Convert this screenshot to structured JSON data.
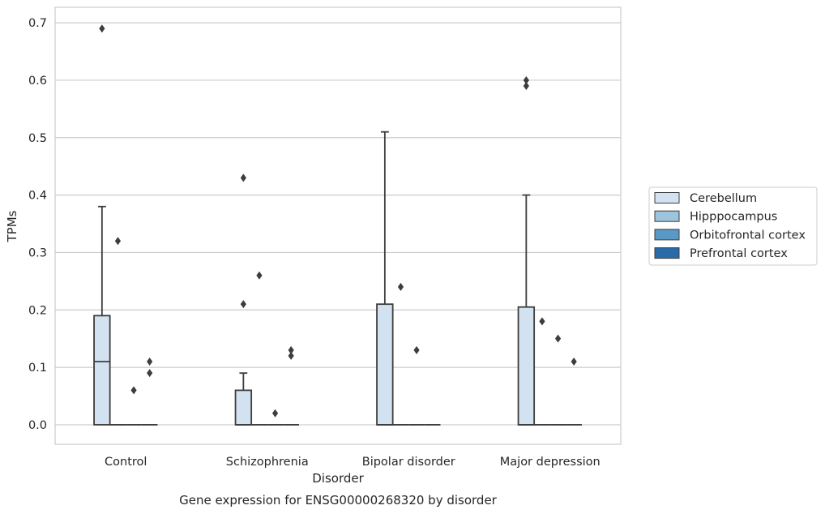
{
  "chart_data": {
    "type": "box",
    "title": "",
    "caption": "Gene expression for ENSG00000268320 by disorder",
    "xlabel": "Disorder",
    "ylabel": "TPMs",
    "ylim": [
      -0.034,
      0.727
    ],
    "yticks": [
      "0.0",
      "0.1",
      "0.2",
      "0.3",
      "0.4",
      "0.5",
      "0.6",
      "0.7"
    ],
    "ytick_values": [
      0.0,
      0.1,
      0.2,
      0.3,
      0.4,
      0.5,
      0.6,
      0.7
    ],
    "categories": [
      "Control",
      "Schizophrenia",
      "Bipolar disorder",
      "Major depression"
    ],
    "grid": "horizontal",
    "legend_position": "right",
    "series": [
      {
        "name": "Cerebellum",
        "color": "#d3e2f1",
        "boxes": [
          {
            "q1": 0.0,
            "median": 0.11,
            "q3": 0.19,
            "whisker_low": 0.0,
            "whisker_high": 0.38,
            "outliers": [
              0.69
            ]
          },
          {
            "q1": 0.0,
            "median": 0.0,
            "q3": 0.06,
            "whisker_low": 0.0,
            "whisker_high": 0.09,
            "outliers": [
              0.21,
              0.43
            ]
          },
          {
            "q1": 0.0,
            "median": 0.0,
            "q3": 0.21,
            "whisker_low": 0.0,
            "whisker_high": 0.51,
            "outliers": []
          },
          {
            "q1": 0.0,
            "median": 0.0,
            "q3": 0.205,
            "whisker_low": 0.0,
            "whisker_high": 0.4,
            "outliers": [
              0.59,
              0.6
            ]
          }
        ]
      },
      {
        "name": "Hipppocampus",
        "color": "#9dc3dd",
        "boxes": [
          {
            "q1": 0.0,
            "median": 0.0,
            "q3": 0.0,
            "whisker_low": 0.0,
            "whisker_high": 0.0,
            "outliers": [
              0.32
            ]
          },
          {
            "q1": 0.0,
            "median": 0.0,
            "q3": 0.0,
            "whisker_low": 0.0,
            "whisker_high": 0.0,
            "outliers": [
              0.26
            ]
          },
          {
            "q1": 0.0,
            "median": 0.0,
            "q3": 0.0,
            "whisker_low": 0.0,
            "whisker_high": 0.0,
            "outliers": [
              0.24
            ]
          },
          {
            "q1": 0.0,
            "median": 0.0,
            "q3": 0.0,
            "whisker_low": 0.0,
            "whisker_high": 0.0,
            "outliers": [
              0.18
            ]
          }
        ]
      },
      {
        "name": "Orbitofrontal cortex",
        "color": "#5a98c5",
        "boxes": [
          {
            "q1": 0.0,
            "median": 0.0,
            "q3": 0.0,
            "whisker_low": 0.0,
            "whisker_high": 0.0,
            "outliers": [
              0.06
            ]
          },
          {
            "q1": 0.0,
            "median": 0.0,
            "q3": 0.0,
            "whisker_low": 0.0,
            "whisker_high": 0.0,
            "outliers": [
              0.02
            ]
          },
          {
            "q1": 0.0,
            "median": 0.0,
            "q3": 0.0,
            "whisker_low": 0.0,
            "whisker_high": 0.0,
            "outliers": [
              0.13
            ]
          },
          {
            "q1": 0.0,
            "median": 0.0,
            "q3": 0.0,
            "whisker_low": 0.0,
            "whisker_high": 0.0,
            "outliers": [
              0.15
            ]
          }
        ]
      },
      {
        "name": "Prefrontal cortex",
        "color": "#2b6aa8",
        "boxes": [
          {
            "q1": 0.0,
            "median": 0.0,
            "q3": 0.0,
            "whisker_low": 0.0,
            "whisker_high": 0.0,
            "outliers": [
              0.09,
              0.11
            ]
          },
          {
            "q1": 0.0,
            "median": 0.0,
            "q3": 0.0,
            "whisker_low": 0.0,
            "whisker_high": 0.0,
            "outliers": [
              0.12,
              0.13
            ]
          },
          {
            "q1": 0.0,
            "median": 0.0,
            "q3": 0.0,
            "whisker_low": 0.0,
            "whisker_high": 0.0,
            "outliers": []
          },
          {
            "q1": 0.0,
            "median": 0.0,
            "q3": 0.0,
            "whisker_low": 0.0,
            "whisker_high": 0.0,
            "outliers": [
              0.11
            ]
          }
        ]
      }
    ],
    "colors": {
      "box_edge": "#3d3d3d",
      "grid": "#cccccc",
      "frame": "#cccccc",
      "text": "#262626"
    }
  }
}
